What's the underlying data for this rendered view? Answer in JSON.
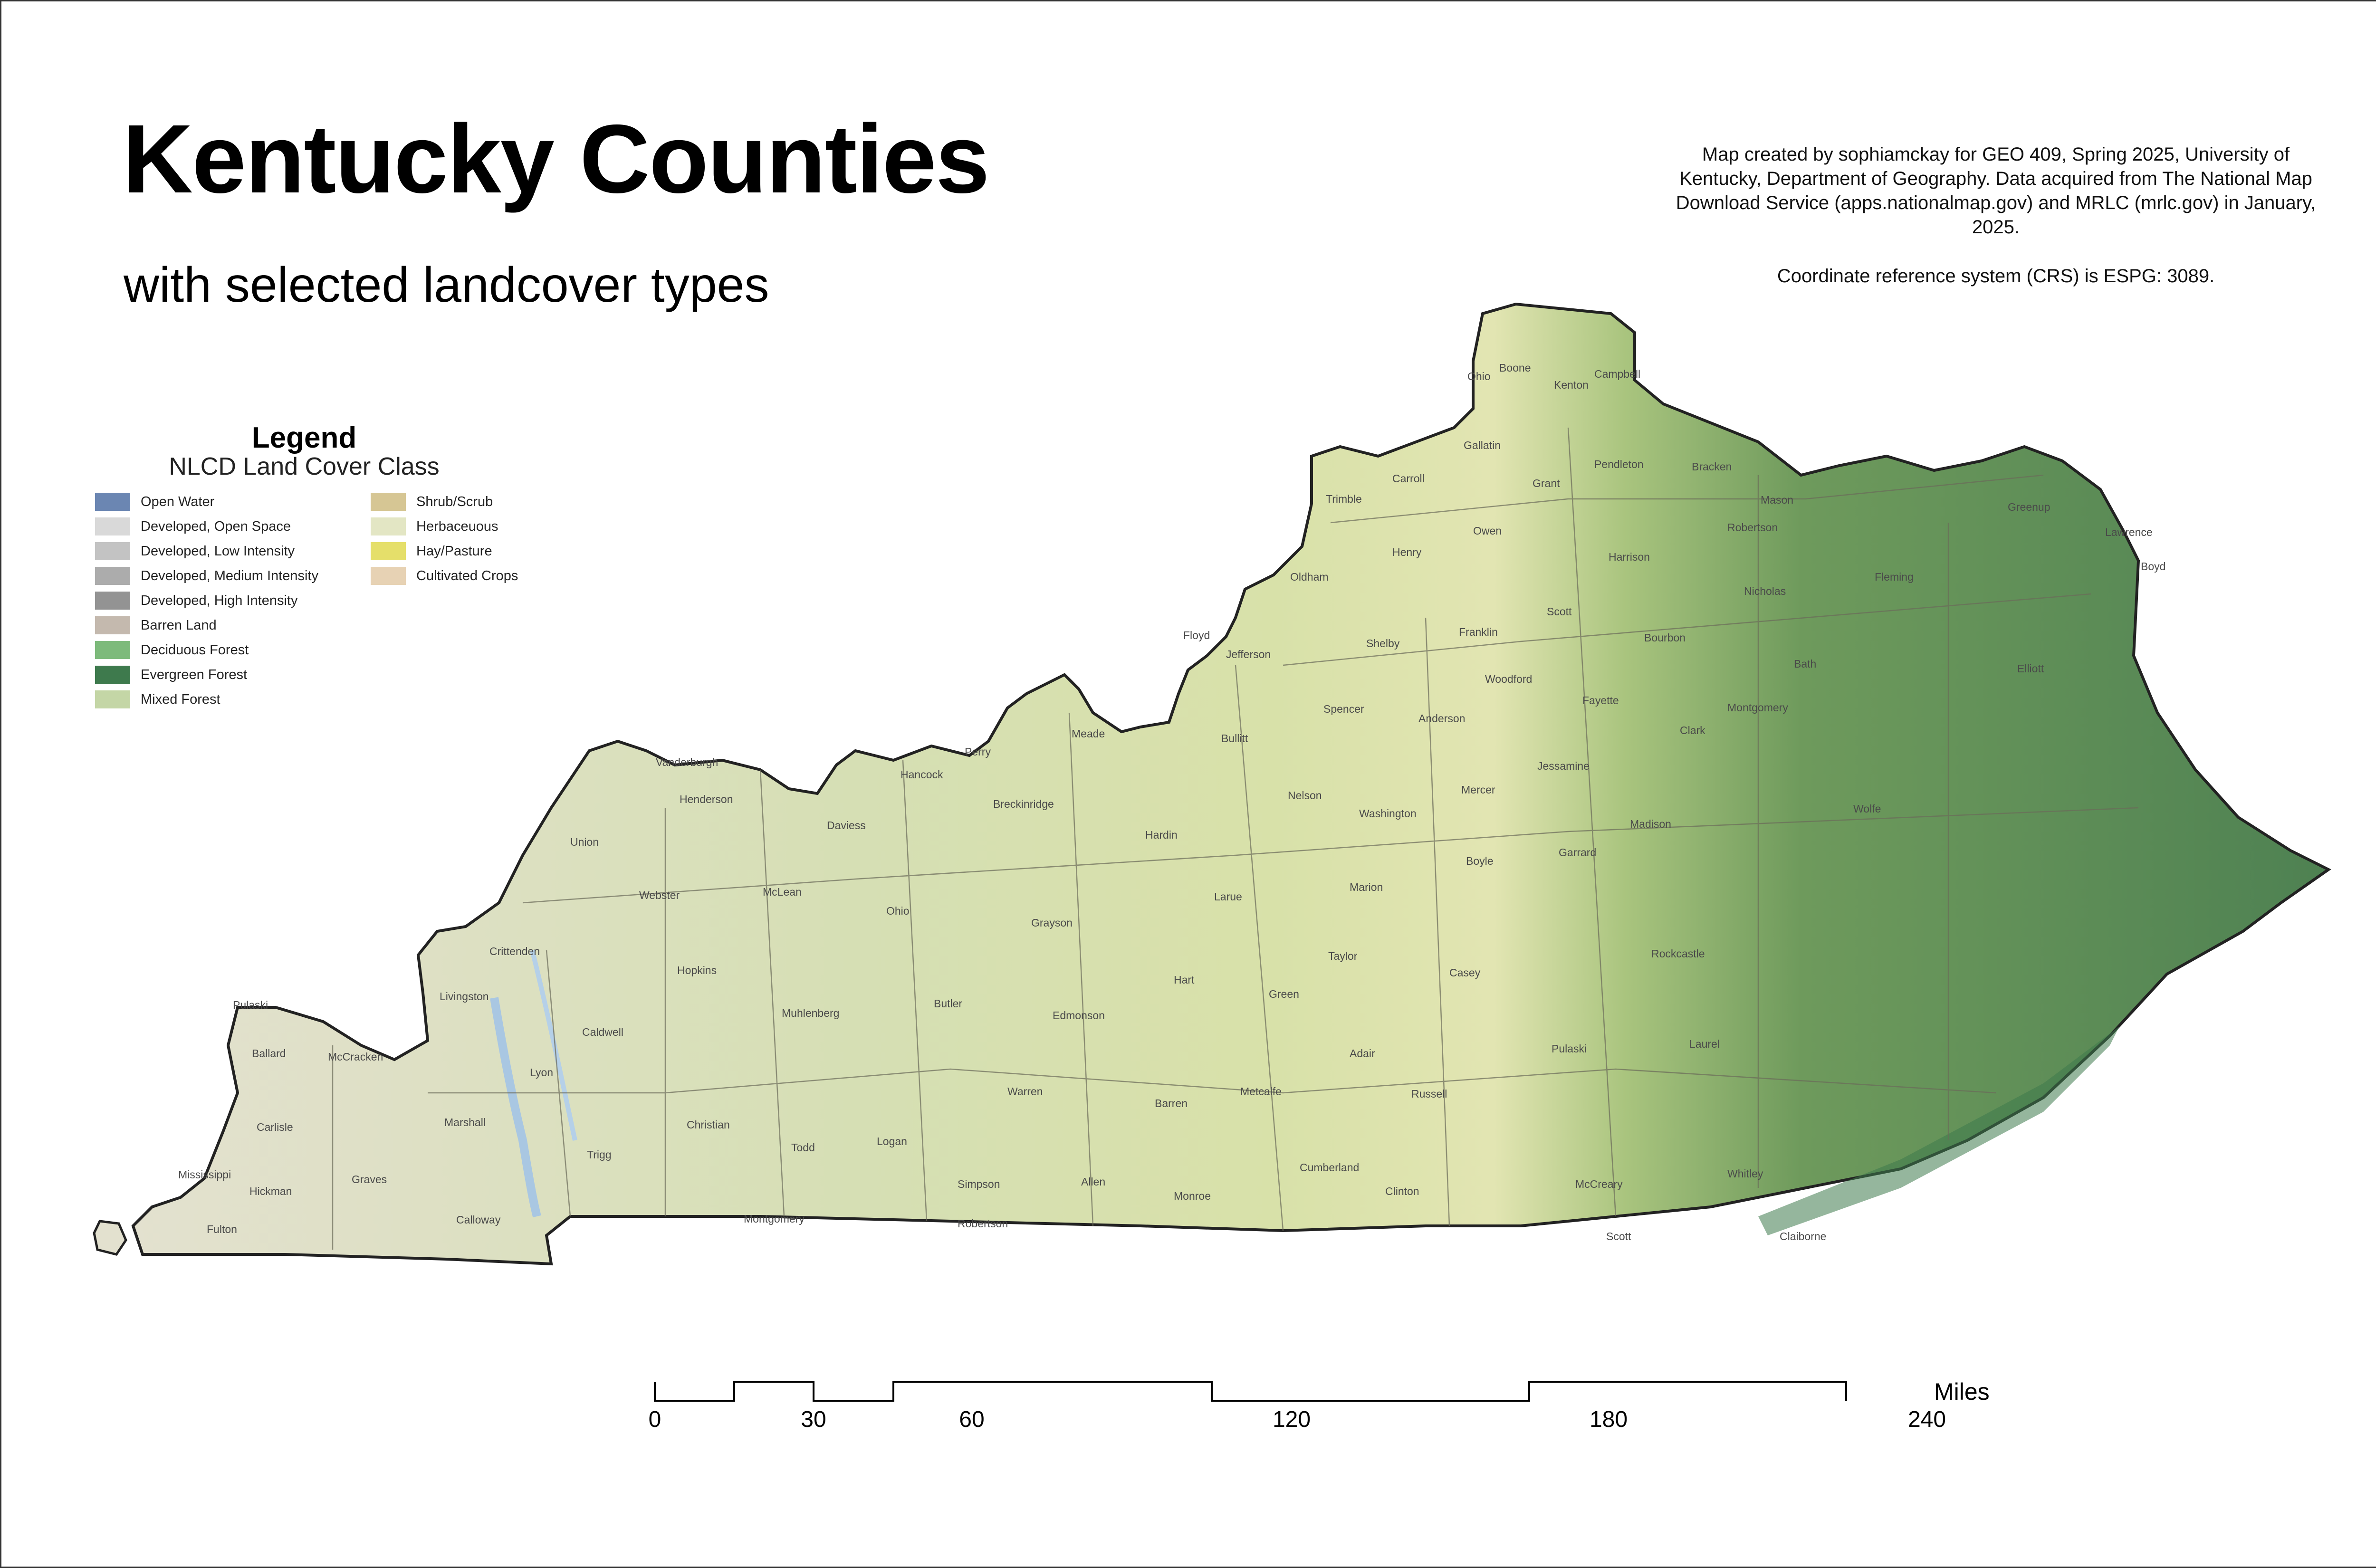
{
  "title": "Kentucky Counties",
  "subtitle": "with selected landcover types",
  "credits": {
    "text": "Map created by sophiamckay for GEO 409, Spring 2025, University of Kentucky, Department of Geography. Data acquired from The National Map Download Service (apps.nationalmap.gov) and MRLC (mrlc.gov) in January, 2025.",
    "crs": "Coordinate reference system (CRS) is ESPG: 3089."
  },
  "legend": {
    "title": "Legend",
    "subtitle": "NLCD Land Cover Class",
    "items": [
      {
        "label": "Open Water",
        "color": "#6b86b2"
      },
      {
        "label": "Developed, Open Space",
        "color": "#d9d9d9"
      },
      {
        "label": "Developed, Low Intensity",
        "color": "#c3c3c3"
      },
      {
        "label": "Developed, Medium Intensity",
        "color": "#acacac"
      },
      {
        "label": "Developed, High Intensity",
        "color": "#939393"
      },
      {
        "label": "Barren Land",
        "color": "#c4b9ae"
      },
      {
        "label": "Deciduous Forest",
        "color": "#7dba7b"
      },
      {
        "label": "Evergreen Forest",
        "color": "#3e7a4d"
      },
      {
        "label": "Mixed Forest",
        "color": "#c4d6a6"
      },
      {
        "label": "Shrub/Scrub",
        "color": "#d6c694"
      },
      {
        "label": "Herbaceuous",
        "color": "#e3e6c4"
      },
      {
        "label": "Hay/Pasture",
        "color": "#e5df6a"
      },
      {
        "label": "Cultivated Crops",
        "color": "#e7d2b4"
      }
    ]
  },
  "map": {
    "landcover_colors": {
      "west": "#e3e1cf",
      "central": "#d7e1ae",
      "bluegrass": "#e4e6b6",
      "east": "#6e9a5c",
      "border": "#222222"
    },
    "counties": [
      {
        "name": "Boone"
      },
      {
        "name": "Kenton"
      },
      {
        "name": "Campbell"
      },
      {
        "name": "Ohio"
      },
      {
        "name": "Gallatin"
      },
      {
        "name": "Grant"
      },
      {
        "name": "Pendleton"
      },
      {
        "name": "Bracken"
      },
      {
        "name": "Mason"
      },
      {
        "name": "Carroll"
      },
      {
        "name": "Trimble"
      },
      {
        "name": "Owen"
      },
      {
        "name": "Robertson"
      },
      {
        "name": "Henry"
      },
      {
        "name": "Harrison"
      },
      {
        "name": "Greenup"
      },
      {
        "name": "Lawrence"
      },
      {
        "name": "Boyd"
      },
      {
        "name": "Fleming"
      },
      {
        "name": "Nicholas"
      },
      {
        "name": "Oldham"
      },
      {
        "name": "Scott"
      },
      {
        "name": "Franklin"
      },
      {
        "name": "Bourbon"
      },
      {
        "name": "Shelby"
      },
      {
        "name": "Floyd"
      },
      {
        "name": "Jefferson"
      },
      {
        "name": "Woodford"
      },
      {
        "name": "Bath"
      },
      {
        "name": "Elliott"
      },
      {
        "name": "Fayette"
      },
      {
        "name": "Montgomery"
      },
      {
        "name": "Spencer"
      },
      {
        "name": "Anderson"
      },
      {
        "name": "Clark"
      },
      {
        "name": "Meade"
      },
      {
        "name": "Bullitt"
      },
      {
        "name": "Jessamine"
      },
      {
        "name": "Vanderburgh"
      },
      {
        "name": "Perry"
      },
      {
        "name": "Hancock"
      },
      {
        "name": "Henderson"
      },
      {
        "name": "Breckinridge"
      },
      {
        "name": "Nelson"
      },
      {
        "name": "Mercer"
      },
      {
        "name": "Washington"
      },
      {
        "name": "Daviess"
      },
      {
        "name": "Hardin"
      },
      {
        "name": "Madison"
      },
      {
        "name": "Wolfe"
      },
      {
        "name": "Union"
      },
      {
        "name": "Boyle"
      },
      {
        "name": "Garrard"
      },
      {
        "name": "Webster"
      },
      {
        "name": "McLean"
      },
      {
        "name": "Larue"
      },
      {
        "name": "Marion"
      },
      {
        "name": "Ohio"
      },
      {
        "name": "Crittenden"
      },
      {
        "name": "Grayson"
      },
      {
        "name": "Hopkins"
      },
      {
        "name": "Taylor"
      },
      {
        "name": "Casey"
      },
      {
        "name": "Rockcastle"
      },
      {
        "name": "Hart"
      },
      {
        "name": "Livingston"
      },
      {
        "name": "Green"
      },
      {
        "name": "Butler"
      },
      {
        "name": "Muhlenberg"
      },
      {
        "name": "Edmonson"
      },
      {
        "name": "Caldwell"
      },
      {
        "name": "Pulaski"
      },
      {
        "name": "Laurel"
      },
      {
        "name": "Adair"
      },
      {
        "name": "Ballard"
      },
      {
        "name": "McCracken"
      },
      {
        "name": "Lyon"
      },
      {
        "name": "Marshall"
      },
      {
        "name": "Warren"
      },
      {
        "name": "Metcalfe"
      },
      {
        "name": "Russell"
      },
      {
        "name": "Barren"
      },
      {
        "name": "Carlisle"
      },
      {
        "name": "Christian"
      },
      {
        "name": "Trigg"
      },
      {
        "name": "Logan"
      },
      {
        "name": "Todd"
      },
      {
        "name": "Mississippi"
      },
      {
        "name": "Graves"
      },
      {
        "name": "Hickman"
      },
      {
        "name": "Simpson"
      },
      {
        "name": "Allen"
      },
      {
        "name": "Cumberland"
      },
      {
        "name": "Clinton"
      },
      {
        "name": "McCreary"
      },
      {
        "name": "Whitley"
      },
      {
        "name": "Monroe"
      },
      {
        "name": "Calloway"
      },
      {
        "name": "Fulton"
      },
      {
        "name": "Montgomery"
      },
      {
        "name": "Robertson"
      },
      {
        "name": "Scott"
      },
      {
        "name": "Claiborne"
      },
      {
        "name": "Pulaski"
      }
    ]
  },
  "scalebar": {
    "unit": "Miles",
    "ticks": [
      "0",
      "30",
      "60",
      "120",
      "180",
      "240"
    ]
  }
}
